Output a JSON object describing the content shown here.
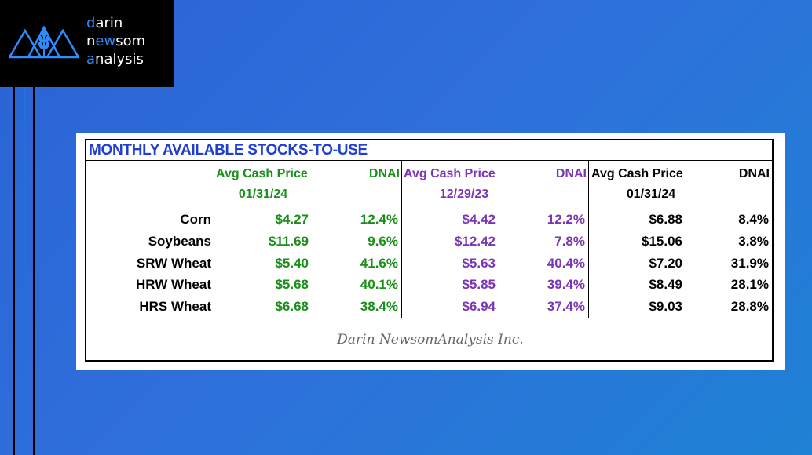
{
  "logo": {
    "line1_accent": "d",
    "line1_rest": "arin",
    "line2_pre": "n",
    "line2_accent": "ew",
    "line2_rest": "som",
    "line3_accent": "a",
    "line3_rest": "nalysis",
    "icon": "mountain-wheat-icon"
  },
  "table": {
    "title": "MONTHLY AVAILABLE STOCKS-TO-USE",
    "groups": [
      {
        "price_header": "Avg Cash Price",
        "date": "01/31/24",
        "dnai_header": "DNAI",
        "color": "#1a8f1a"
      },
      {
        "price_header": "Avg Cash Price",
        "date": "12/29/23",
        "dnai_header": "DNAI",
        "color": "#7a35b5"
      },
      {
        "price_header": "Avg Cash Price",
        "date": "01/31/24",
        "dnai_header": "DNAI",
        "color": "#000000"
      }
    ],
    "rows": [
      {
        "label": "Corn",
        "values": [
          "$4.27",
          "12.4%",
          "$4.42",
          "12.2%",
          "$6.88",
          "8.4%"
        ]
      },
      {
        "label": "Soybeans",
        "values": [
          "$11.69",
          "9.6%",
          "$12.42",
          "7.8%",
          "$15.06",
          "3.8%"
        ]
      },
      {
        "label": "SRW Wheat",
        "values": [
          "$5.40",
          "41.6%",
          "$5.63",
          "40.4%",
          "$7.20",
          "31.9%"
        ]
      },
      {
        "label": "HRW Wheat",
        "values": [
          "$5.68",
          "40.1%",
          "$5.85",
          "39.4%",
          "$8.49",
          "28.1%"
        ]
      },
      {
        "label": "HRS Wheat",
        "values": [
          "$6.68",
          "38.4%",
          "$6.94",
          "37.4%",
          "$9.03",
          "28.8%"
        ]
      }
    ],
    "footer": "Darin NewsomAnalysis Inc."
  },
  "colors": {
    "background": "#2f6fdb",
    "title": "#1f3fd0",
    "green": "#1a8f1a",
    "purple": "#7a35b5"
  }
}
